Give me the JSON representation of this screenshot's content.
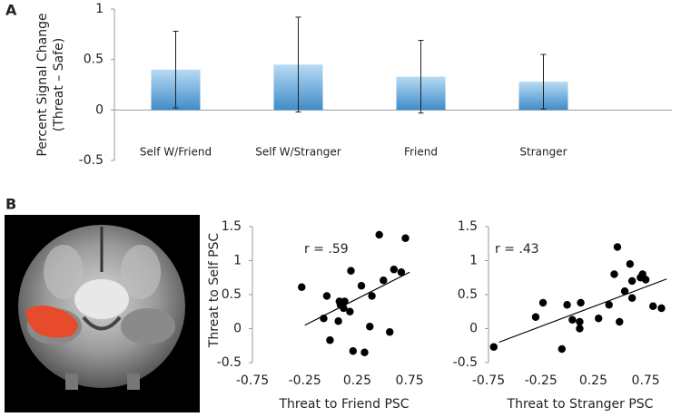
{
  "chart_data": [
    {
      "type": "bar",
      "panel_label": "A",
      "ylabel": [
        "Percent Signal Change",
        "(Threat – Safe)"
      ],
      "categories": [
        "Self W/Friend",
        "Self W/Stranger",
        "Friend",
        "Stranger"
      ],
      "values": [
        0.4,
        0.45,
        0.33,
        0.28
      ],
      "errors": [
        0.38,
        0.47,
        0.36,
        0.27
      ],
      "color": "#5ba3d9",
      "ylim": [
        -0.5,
        1
      ],
      "yticks": [
        -0.5,
        0,
        0.5,
        1
      ]
    },
    {
      "type": "scatter",
      "panel_label": "B",
      "xlabel": "Threat to Friend PSC",
      "ylabel": "Threat to Self PSC",
      "annotation": "r = .59",
      "x": [
        -0.28,
        -0.04,
        0.08,
        0.09,
        0.13,
        0.12,
        0.18,
        0.07,
        -0.07,
        -0.01,
        0.21,
        0.19,
        0.29,
        0.32,
        0.37,
        0.39,
        0.5,
        0.56,
        0.46,
        0.6,
        0.67,
        0.71
      ],
      "y": [
        0.61,
        0.48,
        0.4,
        0.35,
        0.4,
        0.3,
        0.25,
        0.11,
        0.15,
        -0.17,
        -0.33,
        0.85,
        0.63,
        -0.35,
        0.03,
        0.48,
        0.71,
        -0.05,
        1.38,
        0.87,
        0.83,
        1.33
      ],
      "fit": {
        "x": [
          -0.25,
          0.75
        ],
        "y": [
          0.05,
          0.83
        ]
      },
      "color": "#000000",
      "xlim": [
        -0.75,
        1
      ],
      "xticks": [
        -0.75,
        -0.25,
        0.25,
        0.75
      ],
      "ylim": [
        -0.5,
        1.5
      ],
      "yticks": [
        -0.5,
        0,
        0.5,
        1,
        1.5
      ]
    },
    {
      "type": "scatter",
      "xlabel": "Threat to Stranger PSC",
      "annotation": "r = .43",
      "x": [
        -0.7,
        -0.3,
        -0.23,
        -0.05,
        0.0,
        0.05,
        0.12,
        0.13,
        0.12,
        0.3,
        0.45,
        0.4,
        0.5,
        0.48,
        0.55,
        0.6,
        0.62,
        0.7,
        0.72,
        0.62,
        0.82,
        0.9,
        0.75
      ],
      "y": [
        -0.27,
        0.17,
        0.38,
        -0.3,
        0.35,
        0.13,
        0.1,
        0.38,
        0.0,
        0.15,
        0.8,
        0.35,
        0.1,
        1.2,
        0.55,
        0.95,
        0.7,
        0.75,
        0.8,
        0.45,
        0.33,
        0.3,
        0.72
      ],
      "fit": {
        "x": [
          -0.65,
          0.95
        ],
        "y": [
          -0.2,
          0.73
        ]
      },
      "color": "#000000",
      "xlim": [
        -0.75,
        1
      ],
      "xticks": [
        -0.75,
        -0.25,
        0.25,
        0.75
      ],
      "ylim": [
        -0.5,
        1.5
      ],
      "yticks": [
        -0.5,
        0,
        0.5,
        1,
        1.5
      ]
    }
  ]
}
